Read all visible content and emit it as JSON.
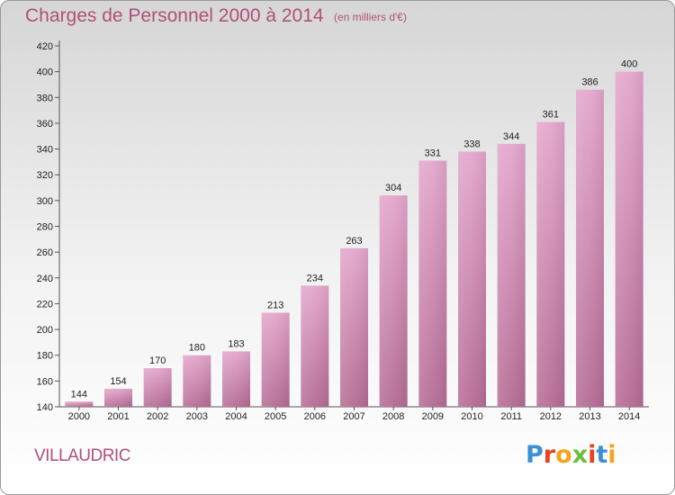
{
  "chart_data": {
    "type": "bar",
    "title": "Charges de Personnel 2000 à 2014",
    "subtitle": "(en milliers d'€)",
    "categories": [
      "2000",
      "2001",
      "2002",
      "2003",
      "2004",
      "2005",
      "2006",
      "2007",
      "2008",
      "2009",
      "2010",
      "2011",
      "2012",
      "2013",
      "2014"
    ],
    "values": [
      144,
      154,
      170,
      180,
      183,
      213,
      234,
      263,
      304,
      331,
      338,
      344,
      361,
      386,
      400
    ],
    "ylim": [
      140,
      420
    ],
    "yticks": [
      140,
      160,
      180,
      200,
      220,
      240,
      260,
      280,
      300,
      320,
      340,
      360,
      380,
      400,
      420
    ],
    "xlabel": "",
    "ylabel": "",
    "bar_color": "#d98cba",
    "grid": false
  },
  "location": "VILLAUDRIC",
  "brand": {
    "letters": [
      "P",
      "r",
      "o",
      "x",
      "i",
      "t",
      "i"
    ],
    "colors": [
      "#3a8fd6",
      "#e8431f",
      "#f2a51c",
      "#6cbf3c",
      "#e8431f",
      "#3a8fd6",
      "#f2a51c"
    ]
  }
}
